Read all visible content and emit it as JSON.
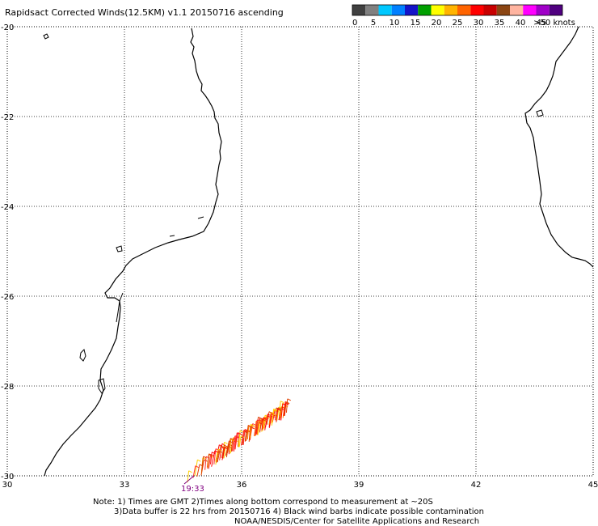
{
  "title": "Rapidsact Corrected Winds(12.5KM) v1.1 20150716 ascending",
  "legend": {
    "colors": [
      "#404040",
      "#808080",
      "#00c8ff",
      "#0080ff",
      "#1414c8",
      "#00a000",
      "#ffff00",
      "#ffb400",
      "#ff6400",
      "#ff0000",
      "#c80000",
      "#8b4513",
      "#ffb4a0",
      "#ff00ff",
      "#a000c8",
      "#500080"
    ],
    "labels": [
      "0",
      "5",
      "10",
      "15",
      "20",
      "25",
      "30",
      "35",
      "40",
      "45",
      ">50 knots"
    ]
  },
  "axes": {
    "x_ticks": [
      "30",
      "33",
      "36",
      "39",
      "42",
      "45"
    ],
    "y_ticks": [
      "-20",
      "-22",
      "-24",
      "-26",
      "-28",
      "-30"
    ],
    "x_range": [
      30,
      45
    ],
    "y_range": [
      -30,
      -20
    ]
  },
  "time_label": "19:33",
  "notes": [
    "Note: 1) Times are GMT 2)Times along bottom correspond to measurement at ~20S",
    "3)Data buffer is 22 hrs from 20150716 4) Black wind barbs indicate possible contamination",
    "NOAA/NESDIS/Center for Satellite Applications and Research"
  ],
  "colors": {
    "coast": "#000000",
    "grid": "#000000",
    "barb_hi": "#ff0000",
    "barb_mid": "#ff8000",
    "barb_lo": "#ffd000",
    "time": "#800080"
  }
}
